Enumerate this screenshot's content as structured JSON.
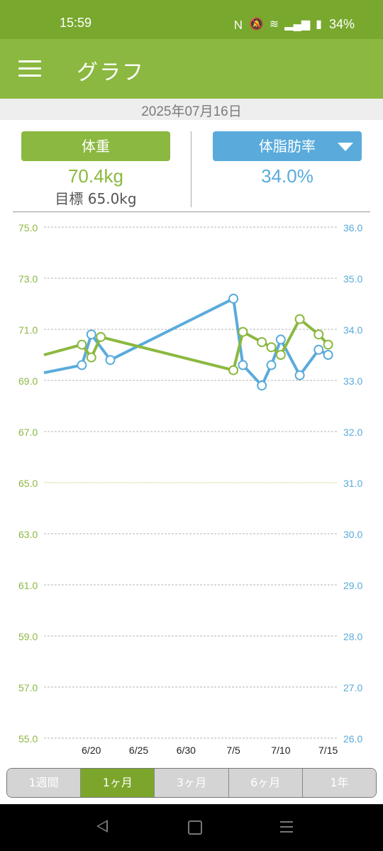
{
  "status": {
    "time": "15:59",
    "battery": "34%"
  },
  "app": {
    "title": "グラフ"
  },
  "date": "2025年07月16日",
  "weight": {
    "label": "体重",
    "value": "70.4kg",
    "goal": "目標 65.0kg"
  },
  "fat": {
    "label": "体脂肪率",
    "value": "34.0%"
  },
  "periods": [
    "1週間",
    "1ヶ月",
    "3ヶ月",
    "6ヶ月",
    "1年"
  ],
  "active_period": 1,
  "colors": {
    "weight": "#8bb840",
    "fat": "#5aabdb"
  },
  "chart_data": {
    "type": "line",
    "x_tick_labels": [
      "6/20",
      "6/25",
      "6/30",
      "7/5",
      "7/10",
      "7/15"
    ],
    "x_tick_days": [
      20,
      25,
      30,
      35,
      40,
      45
    ],
    "y_left": {
      "ticks": [
        "75.0",
        "73.0",
        "71.0",
        "69.0",
        "67.0",
        "65.0",
        "63.0",
        "61.0",
        "59.0",
        "57.0",
        "55.0"
      ],
      "range": [
        55,
        75
      ]
    },
    "y_right": {
      "ticks": [
        "36.0",
        "35.0",
        "34.0",
        "33.0",
        "32.0",
        "31.0",
        "30.0",
        "29.0",
        "28.0",
        "27.0",
        "26.0"
      ],
      "range": [
        26,
        36
      ]
    },
    "goal_value": 65.0,
    "series": [
      {
        "axis": "left",
        "color": "#8bb840",
        "points": [
          [
            19,
            70.4
          ],
          [
            20,
            69.9
          ],
          [
            21,
            70.7
          ],
          [
            35,
            69.4
          ],
          [
            36,
            70.9
          ],
          [
            38,
            70.5
          ],
          [
            39,
            70.3
          ],
          [
            40,
            70.0
          ],
          [
            42,
            71.4
          ],
          [
            44,
            70.8
          ],
          [
            45,
            70.4
          ]
        ],
        "lead_in": [
          [
            15,
            70.0
          ]
        ]
      },
      {
        "axis": "right",
        "color": "#5aabdb",
        "points": [
          [
            19,
            33.3
          ],
          [
            20,
            33.9
          ],
          [
            22,
            33.4
          ],
          [
            35,
            34.6
          ],
          [
            36,
            33.3
          ],
          [
            38,
            32.9
          ],
          [
            39,
            33.3
          ],
          [
            40,
            33.8
          ],
          [
            42,
            33.1
          ],
          [
            44,
            33.6
          ],
          [
            45,
            33.5
          ]
        ],
        "lead_in": [
          [
            15,
            33.15
          ]
        ]
      }
    ]
  }
}
